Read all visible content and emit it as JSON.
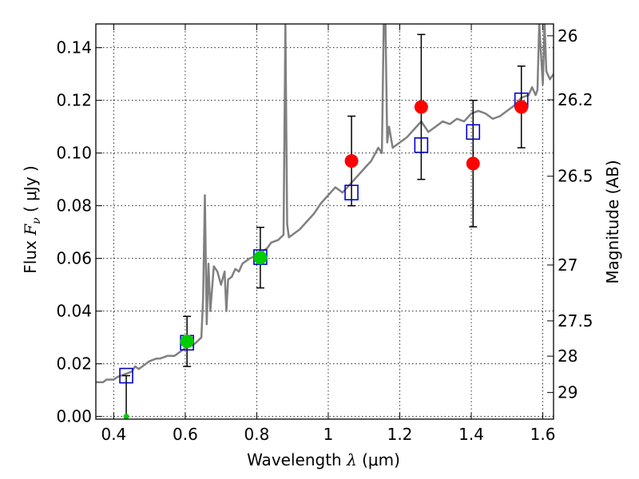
{
  "chart_data": {
    "type": "scatter",
    "xlabel": "Wavelength",
    "xlabel_symbol": "λ",
    "xlabel_unit": "(μm)",
    "ylabel": "Flux",
    "ylabel_symbol": "F",
    "ylabel_sub": "ν",
    "ylabel_unit": "( μJy )",
    "y2label": "Magnitude (AB)",
    "xlim": [
      0.35,
      1.63
    ],
    "ylim": [
      -0.001,
      0.149
    ],
    "grid": true,
    "x_ticks": [
      0.4,
      0.6,
      0.8,
      1.0,
      1.2,
      1.4,
      1.6
    ],
    "x_tick_labels": [
      "0.4",
      "0.6",
      "0.8",
      "1",
      "1.2",
      "1.4",
      "1.6"
    ],
    "y_ticks": [
      0.0,
      0.02,
      0.04,
      0.06,
      0.08,
      0.1,
      0.12,
      0.14
    ],
    "y_tick_labels": [
      "0.00",
      "0.02",
      "0.04",
      "0.06",
      "0.08",
      "0.10",
      "0.12",
      "0.14"
    ],
    "mag_ticks": [
      {
        "label": "26",
        "flux": 0.1445
      },
      {
        "label": "26.2",
        "flux": 0.1202
      },
      {
        "label": "26.5",
        "flux": 0.0912
      },
      {
        "label": "27",
        "flux": 0.0575
      },
      {
        "label": "27.5",
        "flux": 0.0363
      },
      {
        "label": "28",
        "flux": 0.0229
      },
      {
        "label": "29",
        "flux": 0.0091
      }
    ],
    "colors": {
      "model": "#808080",
      "model_points": "#0000cc",
      "green": "#00cc00",
      "red": "#ff0000",
      "errorbar": "#000000"
    },
    "model_spectrum": {
      "x": [
        0.35,
        0.37,
        0.38,
        0.4,
        0.41,
        0.43,
        0.45,
        0.46,
        0.47,
        0.49,
        0.5,
        0.52,
        0.53,
        0.55,
        0.57,
        0.59,
        0.6,
        0.62,
        0.63,
        0.645,
        0.65,
        0.655,
        0.66,
        0.665,
        0.67,
        0.68,
        0.69,
        0.7,
        0.71,
        0.715,
        0.72,
        0.73,
        0.74,
        0.75,
        0.76,
        0.78,
        0.8,
        0.82,
        0.83,
        0.84,
        0.86,
        0.875,
        0.88,
        0.885,
        0.89,
        0.9,
        0.92,
        0.94,
        0.96,
        0.98,
        1.0,
        1.02,
        1.04,
        1.06,
        1.08,
        1.1,
        1.12,
        1.14,
        1.15,
        1.155,
        1.16,
        1.165,
        1.17,
        1.18,
        1.19,
        1.2,
        1.22,
        1.24,
        1.26,
        1.28,
        1.3,
        1.32,
        1.34,
        1.36,
        1.38,
        1.4,
        1.42,
        1.44,
        1.46,
        1.48,
        1.5,
        1.52,
        1.54,
        1.56,
        1.57,
        1.58,
        1.585,
        1.59,
        1.6,
        1.605,
        1.61,
        1.62,
        1.63
      ],
      "y": [
        0.013,
        0.013,
        0.014,
        0.014,
        0.015,
        0.016,
        0.017,
        0.019,
        0.018,
        0.02,
        0.021,
        0.022,
        0.022,
        0.023,
        0.023,
        0.025,
        0.026,
        0.027,
        0.028,
        0.03,
        0.045,
        0.084,
        0.035,
        0.058,
        0.04,
        0.057,
        0.055,
        0.05,
        0.055,
        0.04,
        0.052,
        0.053,
        0.056,
        0.055,
        0.058,
        0.06,
        0.061,
        0.063,
        0.064,
        0.066,
        0.067,
        0.069,
        0.149,
        0.073,
        0.068,
        0.069,
        0.071,
        0.074,
        0.077,
        0.081,
        0.084,
        0.087,
        0.085,
        0.088,
        0.091,
        0.094,
        0.097,
        0.102,
        0.1,
        0.149,
        0.149,
        0.104,
        0.11,
        0.102,
        0.103,
        0.104,
        0.106,
        0.109,
        0.112,
        0.108,
        0.11,
        0.112,
        0.111,
        0.113,
        0.112,
        0.115,
        0.116,
        0.115,
        0.113,
        0.114,
        0.116,
        0.118,
        0.121,
        0.122,
        0.125,
        0.122,
        0.124,
        0.149,
        0.126,
        0.149,
        0.131,
        0.128,
        0.13
      ]
    },
    "series": [
      {
        "name": "model_points",
        "marker": "square",
        "x": [
          0.435,
          0.605,
          0.81,
          1.065,
          1.26,
          1.405,
          1.54
        ],
        "y": [
          0.0155,
          0.028,
          0.0605,
          0.085,
          0.103,
          0.108,
          0.12
        ]
      },
      {
        "name": "green_obs",
        "marker": "circle",
        "x": [
          0.605,
          0.81,
          0.435
        ],
        "y": [
          0.0285,
          0.0603,
          0.0
        ],
        "err": [
          0.0095,
          0.0115,
          0.0155
        ]
      },
      {
        "name": "red_obs",
        "marker": "circle",
        "x": [
          1.065,
          1.26,
          1.405,
          1.54
        ],
        "y": [
          0.097,
          0.1175,
          0.096,
          0.1175
        ],
        "err": [
          0.017,
          0.0275,
          0.024,
          0.0155
        ]
      }
    ]
  }
}
